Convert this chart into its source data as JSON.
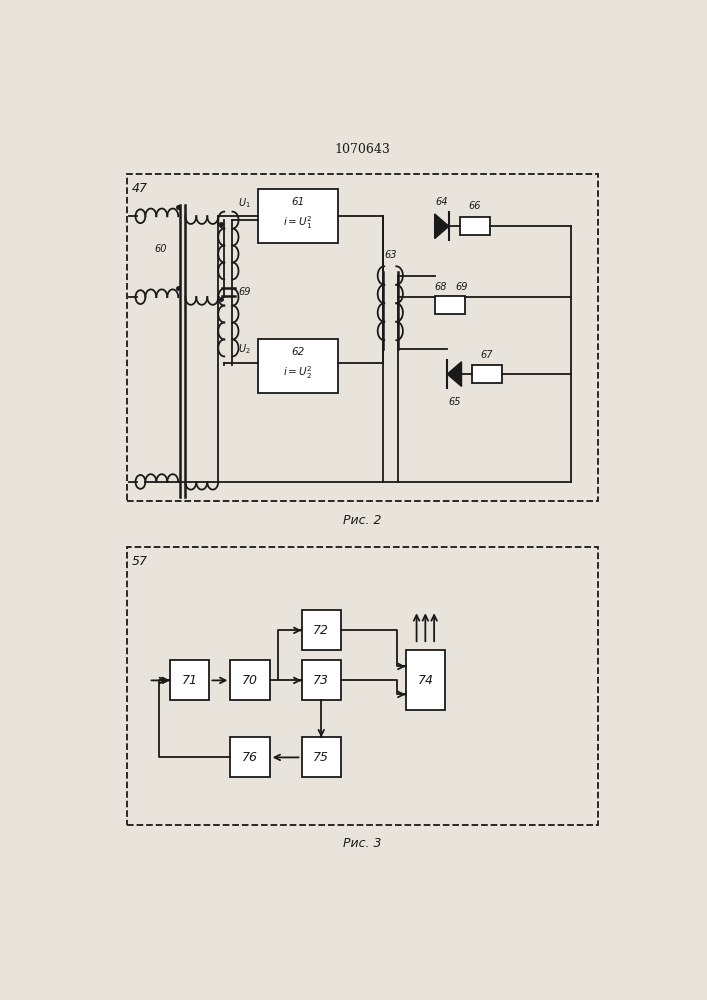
{
  "title": "1070643",
  "caption2": "Рис. 2",
  "caption3": "Рис. 3",
  "bg_color": "#e8e4dc",
  "line_color": "#1a1a1a",
  "fig2_label": "47",
  "fig3_label": "57",
  "fig2_border": [
    0.07,
    0.505,
    0.86,
    0.425
  ],
  "fig3_border": [
    0.07,
    0.085,
    0.86,
    0.36
  ],
  "lw": 1.3
}
